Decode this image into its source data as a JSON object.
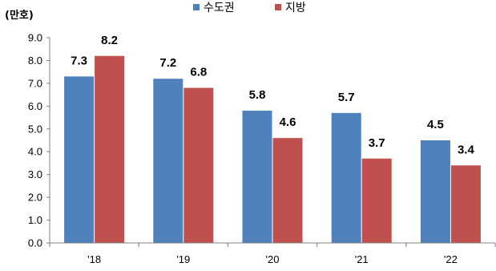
{
  "chart_data": {
    "type": "bar",
    "unit_label": "(만호)",
    "categories": [
      "'18",
      "'19",
      "'20",
      "'21",
      "'22"
    ],
    "series": [
      {
        "name": "수도권",
        "color": "#4f81bd",
        "values": [
          7.3,
          7.2,
          5.8,
          5.7,
          4.5
        ]
      },
      {
        "name": "지방",
        "color": "#c0504d",
        "values": [
          8.2,
          6.8,
          4.6,
          3.7,
          3.4
        ]
      }
    ],
    "y_ticks": [
      "0.0",
      "1.0",
      "2.0",
      "3.0",
      "4.0",
      "5.0",
      "6.0",
      "7.0",
      "8.0",
      "9.0"
    ],
    "ylim": [
      0,
      9
    ],
    "legend_position": "top",
    "grid": false
  }
}
